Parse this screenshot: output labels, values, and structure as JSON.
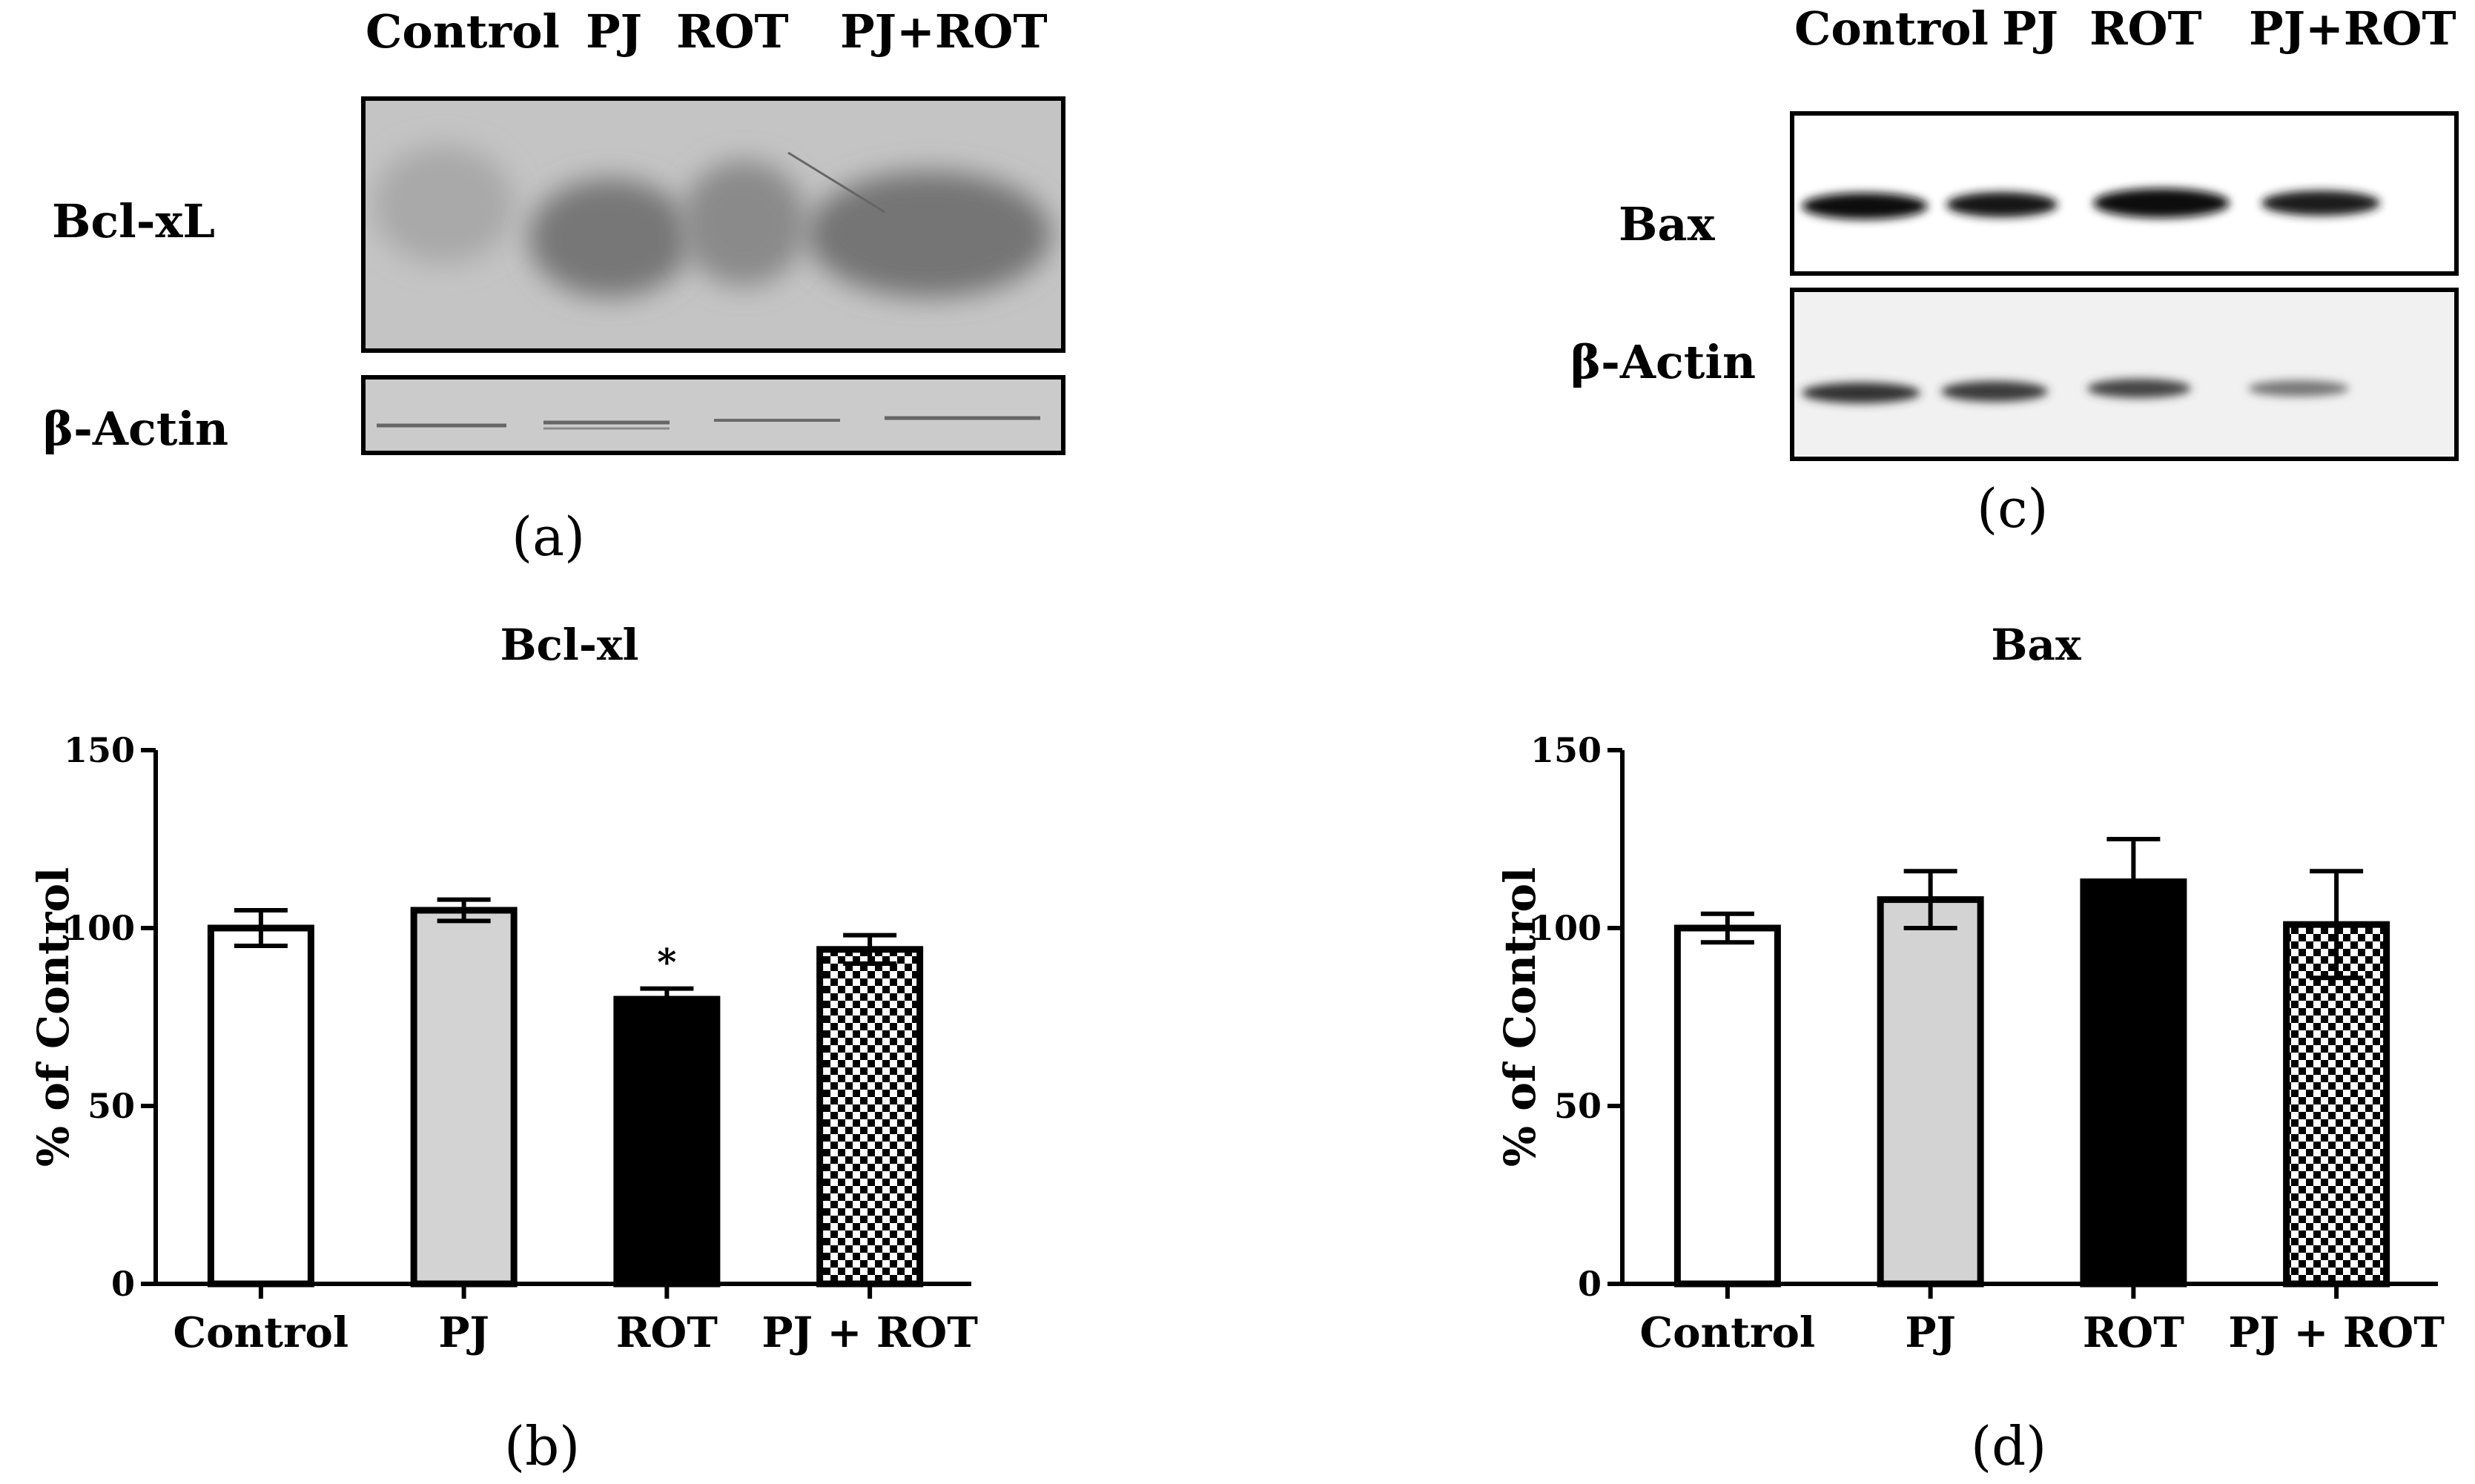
{
  "panel_a": {
    "letter": "(a)",
    "lanes": [
      "Control",
      "PJ",
      "ROT",
      "PJ+ROT"
    ],
    "row_labels": [
      "Bcl-xL",
      "β-Actin"
    ]
  },
  "panel_c": {
    "letter": "(c)",
    "lanes": [
      "Control",
      "PJ",
      "ROT",
      "PJ+ROT"
    ],
    "row_labels": [
      "Bax",
      "β-Actin"
    ]
  },
  "panel_b": {
    "letter": "(b)"
  },
  "panel_d": {
    "letter": "(d)"
  },
  "colors": {
    "black": "#000000",
    "light_gray": "#d3d3d3",
    "white": "#ffffff"
  },
  "chart_data": [
    {
      "type": "bar",
      "title": "Bcl-xl",
      "xlabel": "",
      "ylabel": "% of Control",
      "ylim": [
        0,
        150
      ],
      "yticks": [
        0,
        50,
        100,
        150
      ],
      "categories": [
        "Control",
        "PJ",
        "ROT",
        "PJ + ROT"
      ],
      "values": [
        100,
        105,
        80,
        94
      ],
      "errors": [
        5,
        3,
        3,
        4
      ],
      "fills": [
        "white",
        "light-gray",
        "black",
        "checkered"
      ],
      "annotations": [
        "",
        "",
        "*",
        ""
      ],
      "grid": false,
      "legend": "none"
    },
    {
      "type": "bar",
      "title": "Bax",
      "xlabel": "",
      "ylabel": "% of Control",
      "ylim": [
        0,
        150
      ],
      "yticks": [
        0,
        50,
        100,
        150
      ],
      "categories": [
        "Control",
        "PJ",
        "ROT",
        "PJ + ROT"
      ],
      "values": [
        100,
        108,
        113,
        101
      ],
      "errors": [
        4,
        8,
        12,
        15
      ],
      "fills": [
        "white",
        "light-gray",
        "black",
        "checkered"
      ],
      "annotations": [
        "",
        "",
        "",
        ""
      ],
      "grid": false,
      "legend": "none"
    }
  ]
}
